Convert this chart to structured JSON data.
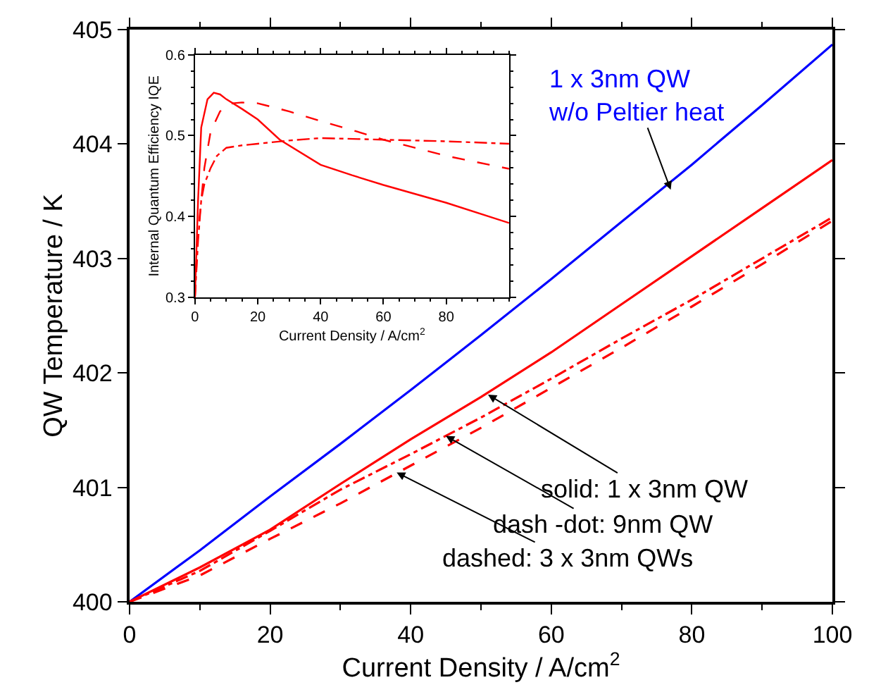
{
  "chart_data": [
    {
      "type": "line",
      "xlabel": "Current Density / A/cm$^{2}$",
      "ylabel": "QW Temperature / K",
      "x": [
        0,
        10,
        20,
        30,
        40,
        50,
        60,
        70,
        80,
        90,
        100
      ],
      "series": [
        {
          "color": "#0000ff",
          "line_style": "solid",
          "values": [
            400,
            400.45,
            400.92,
            401.38,
            401.85,
            402.33,
            402.82,
            403.32,
            403.82,
            404.34,
            404.87
          ]
        },
        {
          "color": "#ff0000",
          "line_style": "solid",
          "values": [
            400,
            400.3,
            400.63,
            401.03,
            401.42,
            401.79,
            402.18,
            402.6,
            403.02,
            403.44,
            403.86
          ]
        },
        {
          "color": "#ff0000",
          "line_style": "dashdot",
          "values": [
            400,
            400.27,
            400.62,
            400.98,
            401.29,
            401.61,
            401.95,
            402.3,
            402.64,
            403.0,
            403.36
          ]
        },
        {
          "color": "#ff0000",
          "line_style": "dashed",
          "values": [
            400,
            400.23,
            400.55,
            400.86,
            401.19,
            401.52,
            401.87,
            402.22,
            402.58,
            402.95,
            403.33
          ]
        }
      ],
      "xlim": [
        0,
        100
      ],
      "xticks": [
        0,
        20,
        40,
        60,
        80,
        100
      ],
      "ylim": [
        400,
        405
      ],
      "yticks": [
        400,
        401,
        402,
        403,
        404,
        405
      ],
      "annotations": [
        {
          "text": "1 x 3nm QW\nw/o Peltier heat",
          "x": 77,
          "y": 403.6
        },
        {
          "text": "solid: 1 x 3nm QW",
          "x": 51,
          "y": 401.81
        },
        {
          "text": "dash -dot: 9nm QW",
          "x": 45,
          "y": 401.45
        },
        {
          "text": "dashed: 3 x 3nm QWs",
          "x": 38,
          "y": 401.13
        }
      ]
    },
    {
      "type": "line",
      "xlabel": "Current Density / A/cm$^{2}$",
      "ylabel": "Internal Quantum Efficiency IQE",
      "series": [
        {
          "color": "#ff0000",
          "line_style": "solid",
          "x": [
            0,
            1,
            2,
            4,
            6,
            8,
            10,
            15,
            20,
            27,
            40,
            50,
            60,
            80,
            100
          ],
          "values": [
            0.3,
            0.42,
            0.51,
            0.545,
            0.553,
            0.551,
            0.545,
            0.533,
            0.52,
            0.495,
            0.464,
            0.451,
            0.439,
            0.417,
            0.392
          ]
        },
        {
          "color": "#ff0000",
          "line_style": "dashed",
          "x": [
            0,
            1,
            3,
            5,
            8,
            12,
            15,
            20,
            30,
            40,
            50,
            60,
            80,
            100
          ],
          "values": [
            0.3,
            0.38,
            0.46,
            0.505,
            0.53,
            0.54,
            0.541,
            0.54,
            0.53,
            0.518,
            0.507,
            0.495,
            0.475,
            0.459
          ]
        },
        {
          "color": "#ff0000",
          "line_style": "dashdot",
          "x": [
            0,
            1,
            2,
            3,
            5,
            7,
            10,
            15,
            20,
            30,
            40,
            60,
            80,
            100
          ],
          "values": [
            0.3,
            0.37,
            0.42,
            0.44,
            0.46,
            0.475,
            0.485,
            0.488,
            0.49,
            0.494,
            0.497,
            0.495,
            0.493,
            0.49
          ]
        }
      ],
      "xlim": [
        0,
        100
      ],
      "xticks": [
        0,
        20,
        40,
        60,
        80
      ],
      "ylim": [
        0.3,
        0.6
      ],
      "yticks": [
        0.3,
        0.4,
        0.5,
        0.6
      ]
    }
  ]
}
